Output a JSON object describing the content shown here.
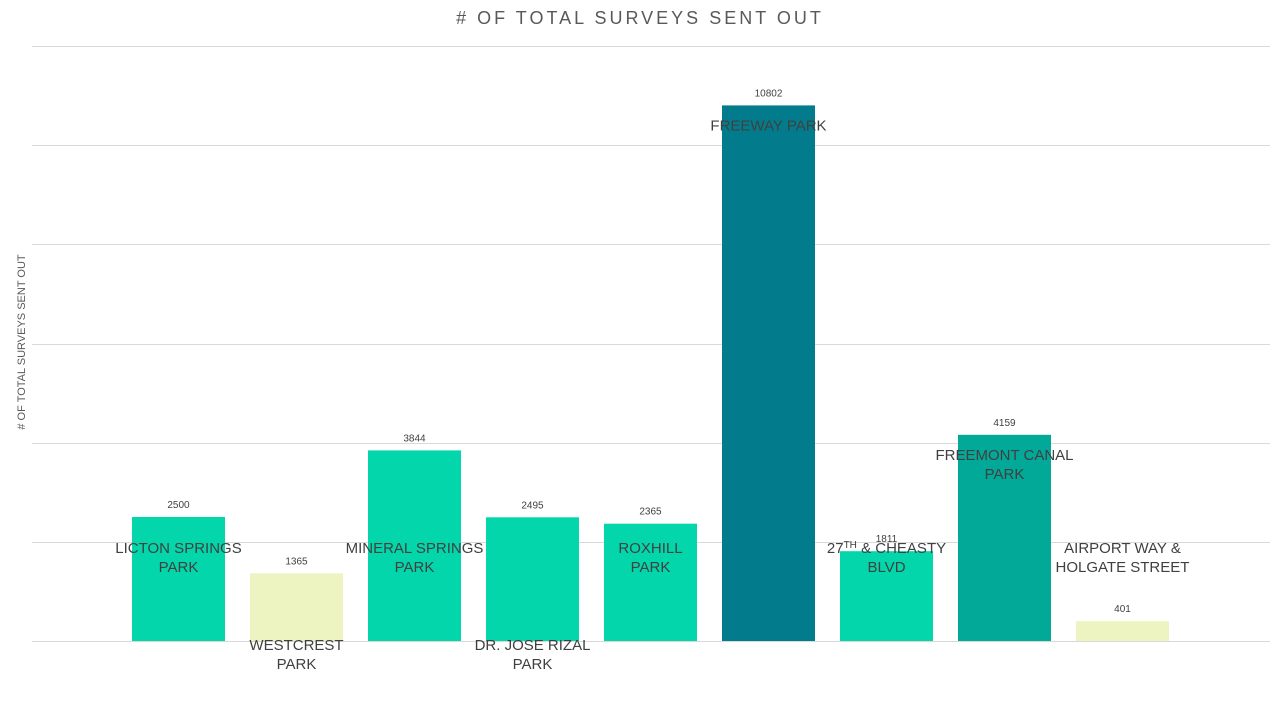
{
  "chart_data": {
    "type": "bar",
    "title": "# OF TOTAL SURVEYS SENT OUT",
    "ylabel": "# OF TOTAL SURVEYS SENT OUT",
    "xlabel": "",
    "ylim": [
      0,
      12000
    ],
    "grid": true,
    "categories": [
      "LICTON SPRINGS PARK",
      "WESTCREST PARK",
      "MINERAL SPRINGS PARK",
      "DR. JOSE RIZAL PARK",
      "ROXHILL PARK",
      "FREEWAY PARK",
      "27TH & CHEASTY BLVD",
      "FREEMONT CANAL PARK",
      "AIRPORT WAY & HOLGATE STREET"
    ],
    "category_label_lines": [
      [
        "LICTON SPRINGS",
        "PARK"
      ],
      [
        "WESTCREST",
        "PARK"
      ],
      [
        "MINERAL SPRINGS",
        "PARK"
      ],
      [
        "DR. JOSE RIZAL",
        "PARK"
      ],
      [
        "ROXHILL",
        "PARK"
      ],
      [
        "FREEWAY PARK"
      ],
      [
        "27TH & CHEASTY",
        "BLVD"
      ],
      [
        "FREEMONT CANAL",
        "PARK"
      ],
      [
        "AIRPORT WAY &",
        "HOLGATE STREET"
      ]
    ],
    "values": [
      2500,
      1365,
      3844,
      2495,
      2365,
      10802,
      1811,
      4159,
      401
    ],
    "colors": [
      "#03d6ab",
      "#eef3c2",
      "#03d6ab",
      "#03d6ab",
      "#03d6ab",
      "#027c8c",
      "#03d6ab",
      "#02a898",
      "#eef3c2"
    ],
    "gridline_color": "#d9d9d9",
    "label_color": "#404040"
  }
}
